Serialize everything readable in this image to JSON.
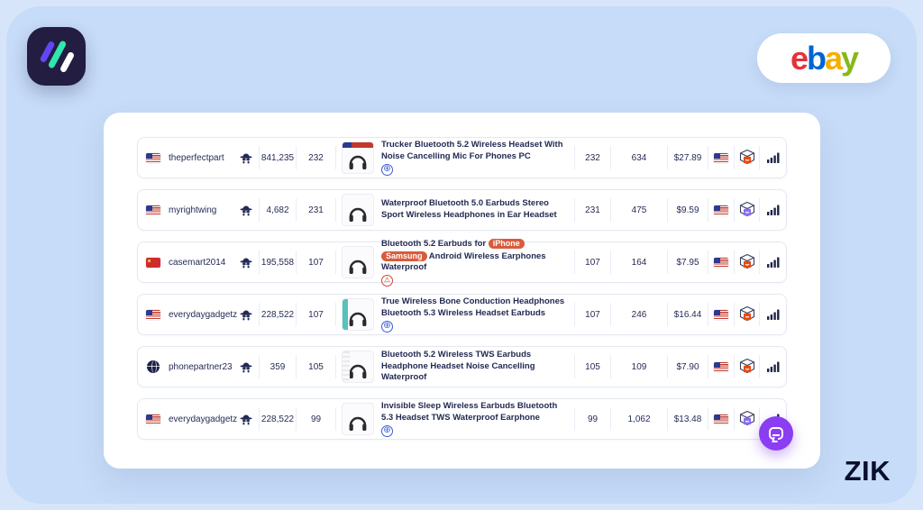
{
  "page": {
    "background": "#c7dcf8",
    "wordmark": "ZIK",
    "accent_purple": "#8b3df2",
    "navy": "#232a56"
  },
  "brand": {
    "zik_logo_colors": {
      "tile": "#221d41",
      "slash1": "#6246f5",
      "slash2": "#2fe6b0",
      "slash3": "#ffffff"
    },
    "ebay_letters": [
      {
        "t": "e",
        "color": "#e53238"
      },
      {
        "t": "b",
        "color": "#0064d2"
      },
      {
        "t": "a",
        "color": "#f5af02"
      },
      {
        "t": "y",
        "color": "#86b817"
      }
    ]
  },
  "table": {
    "rows": [
      {
        "seller_flag": "us",
        "seller": "theperfectpart",
        "feedback": "841,235",
        "sales": "232",
        "product_icon": "us-seller-headset",
        "title_segments": [
          {
            "t": "Trucker Bluetooth 5.2 Wireless Headset With Noise Cancelling Mic For Phones PC"
          }
        ],
        "status_icon": "globe",
        "sold": "232",
        "listings": "634",
        "price": "$27.89",
        "market_flag": "us",
        "box_variant": "orange"
      },
      {
        "seller_flag": "us",
        "seller": "myrightwing",
        "feedback": "4,682",
        "sales": "231",
        "product_icon": "sport-earhook-earbuds",
        "title_segments": [
          {
            "t": "Waterproof Bluetooth 5.0 Earbuds Stereo Sport Wireless Headphones in Ear Headset"
          }
        ],
        "status_icon": "none",
        "sold": "231",
        "listings": "475",
        "price": "$9.59",
        "market_flag": "us",
        "box_variant": "purple"
      },
      {
        "seller_flag": "cn",
        "seller": "casemart2014",
        "feedback": "195,558",
        "sales": "107",
        "product_icon": "earbuds-with-case",
        "title_segments": [
          {
            "t": "Bluetooth 5.2 Earbuds for "
          },
          {
            "t": "iPhone",
            "badge": true
          },
          {
            "t": " "
          },
          {
            "t": "Samsung",
            "badge": true
          },
          {
            "t": " Android Wireless Earphones Waterproof"
          }
        ],
        "status_icon": "warning",
        "sold": "107",
        "listings": "164",
        "price": "$7.95",
        "market_flag": "us",
        "box_variant": "orange"
      },
      {
        "seller_flag": "us",
        "seller": "everydaygadgetz",
        "feedback": "228,522",
        "sales": "107",
        "product_icon": "bone-conduction-headphones",
        "title_segments": [
          {
            "t": "True Wireless Bone Conduction Headphones Bluetooth 5.3 Wireless Headset Earbuds"
          }
        ],
        "status_icon": "globe",
        "sold": "107",
        "listings": "246",
        "price": "$16.44",
        "market_flag": "us",
        "box_variant": "orange"
      },
      {
        "seller_flag": "globe",
        "seller": "phonepartner23",
        "feedback": "359",
        "sales": "105",
        "product_icon": "tws-earbuds",
        "title_segments": [
          {
            "t": "Bluetooth 5.2 Wireless TWS Earbuds Headphone Headset Noise Cancelling Waterproof"
          }
        ],
        "status_icon": "none",
        "sold": "105",
        "listings": "109",
        "price": "$7.90",
        "market_flag": "us",
        "box_variant": "orange"
      },
      {
        "seller_flag": "us",
        "seller": "everydaygadgetz",
        "feedback": "228,522",
        "sales": "99",
        "product_icon": "sleep-earbuds-case",
        "title_segments": [
          {
            "t": "Invisible Sleep Wireless Earbuds Bluetooth 5.3 Headset TWS Waterproof Earphone"
          }
        ],
        "status_icon": "globe",
        "sold": "99",
        "listings": "1,062",
        "price": "$13.48",
        "market_flag": "us",
        "box_variant": "purple"
      }
    ]
  }
}
